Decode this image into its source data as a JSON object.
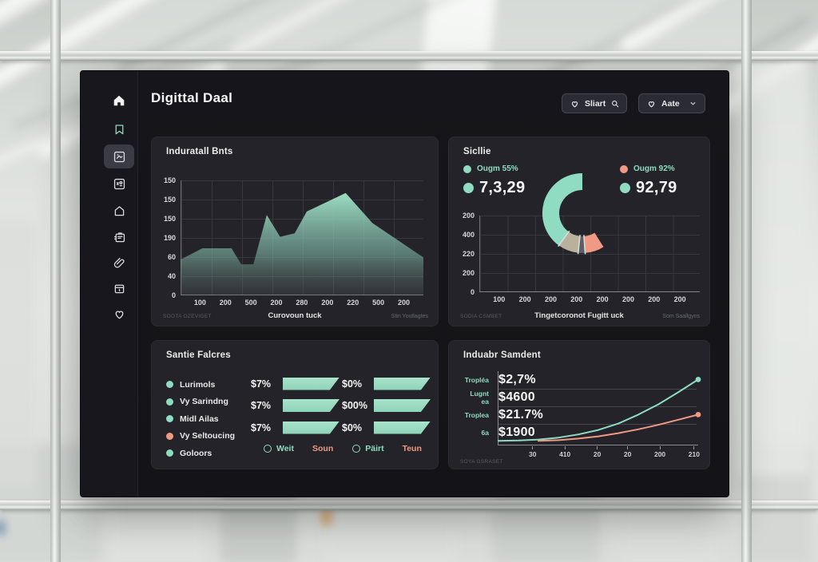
{
  "colors": {
    "teal": "#8fdcc2",
    "salmon": "#f09a86",
    "tan": "#b8b19b",
    "gray": "#5d5d64",
    "panel_bg": "#232329",
    "dashboard_bg": "#141419",
    "text_white": "#f4f4f6",
    "text_muted": "#8b8b94"
  },
  "app": {
    "title": "Digittal Daal"
  },
  "header": {
    "filter_button": {
      "label": "Sliart",
      "left_icon": "heart-icon",
      "right_icon": "search-icon"
    },
    "dropdown_button": {
      "label": "Aate",
      "left_icon": "heart-icon",
      "right_icon": "chevron-down-icon"
    }
  },
  "sidebar": {
    "items": [
      {
        "icon": "home-icon",
        "selected": false
      },
      {
        "icon": "bookmark-icon",
        "selected": false,
        "accent": true
      },
      {
        "icon": "picture-icon",
        "selected": true
      },
      {
        "icon": "frame-icon",
        "selected": false
      },
      {
        "icon": "house-icon",
        "selected": false
      },
      {
        "icon": "clipboard-icon",
        "selected": false
      },
      {
        "icon": "paperclip-icon",
        "selected": false
      },
      {
        "icon": "archive-icon",
        "selected": false
      },
      {
        "icon": "heart-icon",
        "selected": false
      }
    ]
  },
  "panels": {
    "industrial": {
      "title": "Induratall Bnts",
      "xlabel": "Curovoun tuck",
      "footnote_left": "SOOTA OZEVIGET",
      "footnote_right": "Stin Youtlagtes"
    },
    "sicllie": {
      "title": "Sicllie",
      "legend_left": {
        "label": "Ougm 55%",
        "label_color": "teal",
        "dot_color": "teal",
        "value": "7,3,29",
        "value_dot_color": "teal"
      },
      "legend_right": {
        "label": "Ougm 92%",
        "label_color": "teal",
        "dot_color": "salmon",
        "value": "92,79",
        "value_dot_color": "teal"
      },
      "xlabel": "Tingetcoronot Fugitt uck",
      "footnote_left": "SODIA CSMBET",
      "footnote_right": "Som Saallgyns"
    },
    "failures": {
      "title": "Santie Falcres",
      "legend": [
        {
          "label": "Lurimols",
          "color": "teal"
        },
        {
          "label": "Vy Sarindng",
          "color": "teal"
        },
        {
          "label": "Midl Ailas",
          "color": "teal"
        },
        {
          "label": "Vy Seltoucing",
          "color": "salmon"
        },
        {
          "label": "Goloors",
          "color": "teal"
        }
      ],
      "rows": [
        {
          "left": "$7%",
          "right": "$0%"
        },
        {
          "left": "$7%",
          "right": "$00%"
        },
        {
          "left": "$7%",
          "right": "$0%"
        }
      ],
      "footer": [
        {
          "label": "Weit",
          "color": "teal",
          "radio": true
        },
        {
          "label": "Soun",
          "color": "salmon",
          "radio": false
        },
        {
          "label": "Päirt",
          "color": "teal",
          "radio": true
        },
        {
          "label": "Teun",
          "color": "salmon",
          "radio": false
        }
      ]
    },
    "samdent": {
      "title": "Induabr Samdent",
      "stats": [
        {
          "label": "Tropléa",
          "value": "$2,7%"
        },
        {
          "label": "Lugnt ea",
          "value": "$4600"
        },
        {
          "label": "Troplea",
          "value": "$21.7%"
        },
        {
          "label": "6a",
          "value": "$1900"
        }
      ],
      "footnote_left": "SOYA GSRASET"
    }
  },
  "chart_data": [
    {
      "type": "area",
      "title": "Induratall Bnts",
      "xlabel": "Curovoun tuck",
      "y_ticks": [
        "150",
        "150",
        "150",
        "190",
        "60",
        "40",
        "0"
      ],
      "x_ticks": [
        "100",
        "200",
        "500",
        "200",
        "280",
        "200",
        "220",
        "500",
        "200"
      ],
      "grid": true,
      "series": [
        {
          "name": "area",
          "color": "teal",
          "points_norm": [
            [
              0,
              0.31
            ],
            [
              0.09,
              0.41
            ],
            [
              0.21,
              0.41
            ],
            [
              0.25,
              0.27
            ],
            [
              0.3,
              0.27
            ],
            [
              0.355,
              0.7
            ],
            [
              0.41,
              0.51
            ],
            [
              0.47,
              0.54
            ],
            [
              0.52,
              0.73
            ],
            [
              0.68,
              0.89
            ],
            [
              0.79,
              0.63
            ],
            [
              1,
              0.33
            ]
          ]
        }
      ]
    },
    {
      "type": "donut",
      "title": "Sicllie",
      "legend": [
        {
          "label": "Ougm 55%",
          "value": "7,3,29",
          "dot": "teal"
        },
        {
          "label": "Ougm 92%",
          "value": "92,79",
          "dot": "salmon"
        }
      ],
      "segments": [
        {
          "color": "teal",
          "start_deg": 216,
          "end_deg": 360
        },
        {
          "color": "tan",
          "start_deg": 186,
          "end_deg": 216
        },
        {
          "color": "gray",
          "start_deg": 176,
          "end_deg": 186
        },
        {
          "color": "salmon",
          "start_deg": 148,
          "end_deg": 176
        }
      ],
      "separators_deg": [
        176,
        186,
        216
      ],
      "y_ticks": [
        "200",
        "400",
        "220",
        "200",
        "0"
      ],
      "x_ticks": [
        "100",
        "200",
        "200",
        "200",
        "200",
        "200",
        "200",
        "200"
      ],
      "xlabel": "Tingetcoronot Fugitt uck",
      "grid": true
    },
    {
      "type": "bar",
      "title": "Santie Falcres",
      "categories": [
        "Lurimols",
        "Vy Sarindng",
        "Midl Ailas",
        "Vy Seltoucing",
        "Goloors"
      ],
      "rows": [
        {
          "left": "$7%",
          "right": "$0%"
        },
        {
          "left": "$7%",
          "right": "$00%"
        },
        {
          "left": "$7%",
          "right": "$0%"
        }
      ]
    },
    {
      "type": "line",
      "title": "Induabr Samdent",
      "x_ticks": [
        "30",
        "410",
        "20",
        "20",
        "200",
        "210"
      ],
      "series": [
        {
          "name": "teal-curve",
          "color": "teal",
          "end_dot": true,
          "points_norm": [
            [
              0,
              0.01
            ],
            [
              0.1,
              0.015
            ],
            [
              0.2,
              0.03
            ],
            [
              0.3,
              0.06
            ],
            [
              0.4,
              0.11
            ],
            [
              0.5,
              0.18
            ],
            [
              0.6,
              0.28
            ],
            [
              0.7,
              0.42
            ],
            [
              0.8,
              0.58
            ],
            [
              0.9,
              0.77
            ],
            [
              1,
              0.97
            ]
          ]
        },
        {
          "name": "salmon-curve",
          "color": "salmon",
          "end_dot": true,
          "points_norm": [
            [
              0.2,
              0.01
            ],
            [
              0.3,
              0.02
            ],
            [
              0.4,
              0.045
            ],
            [
              0.5,
              0.08
            ],
            [
              0.6,
              0.13
            ],
            [
              0.7,
              0.19
            ],
            [
              0.8,
              0.26
            ],
            [
              0.9,
              0.34
            ],
            [
              1,
              0.42
            ]
          ]
        }
      ]
    }
  ]
}
